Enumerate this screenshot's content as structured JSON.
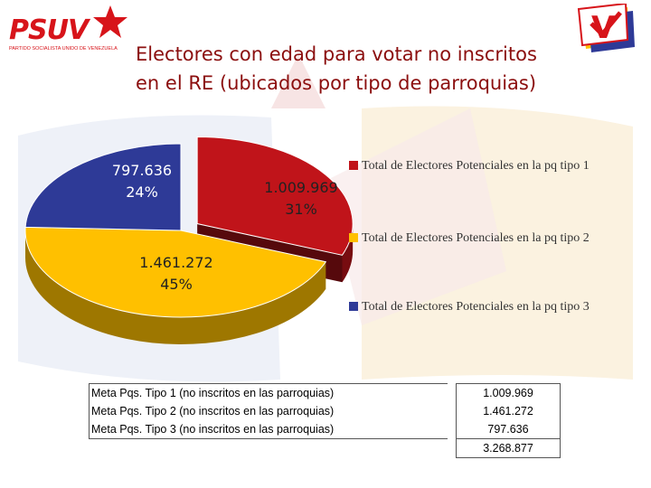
{
  "header": {
    "logo_left": {
      "wordmark": "PSUV",
      "tagline": "PARTIDO SOCIALISTA UNIDO DE VENEZUELA"
    },
    "logo_right": {
      "letter": "V",
      "icon": "psuv-v-check-icon"
    },
    "title_line1": "Electores con edad para votar no inscritos",
    "title_line2": "en el RE (ubicados por tipo de parroquias)"
  },
  "colors": {
    "title": "#8b0e0e",
    "red": "#c0141a",
    "yellow": "#ffc000",
    "blue": "#2e3a97"
  },
  "chart_data": {
    "type": "pie",
    "style": "3d",
    "title": "Electores con edad para votar no inscritos en el RE (ubicados por tipo de parroquias)",
    "legend_position": "right",
    "slices": [
      {
        "name": "Total de Electores Potenciales en la pq tipo 1",
        "value": 1009969,
        "value_label": "1.009.969",
        "percent_label": "31%",
        "color": "#c0141a",
        "exploded": true
      },
      {
        "name": "Total de Electores Potenciales en la pq tipo 2",
        "value": 1461272,
        "value_label": "1.461.272",
        "percent_label": "45%",
        "color": "#ffc000",
        "exploded": false
      },
      {
        "name": "Total de Electores Potenciales en la pq tipo 3",
        "value": 797636,
        "value_label": "797.636",
        "percent_label": "24%",
        "color": "#2e3a97",
        "exploded": false
      }
    ]
  },
  "goals_table": {
    "rows": [
      {
        "label": "Meta Pqs. Tipo 1 (no inscritos en las parroquias)",
        "value": "1.009.969"
      },
      {
        "label": "Meta Pqs. Tipo 2 (no inscritos en las parroquias)",
        "value": "1.461.272"
      },
      {
        "label": "Meta Pqs. Tipo 3 (no inscritos en las parroquias)",
        "value": "797.636"
      }
    ],
    "total": "3.268.877"
  }
}
